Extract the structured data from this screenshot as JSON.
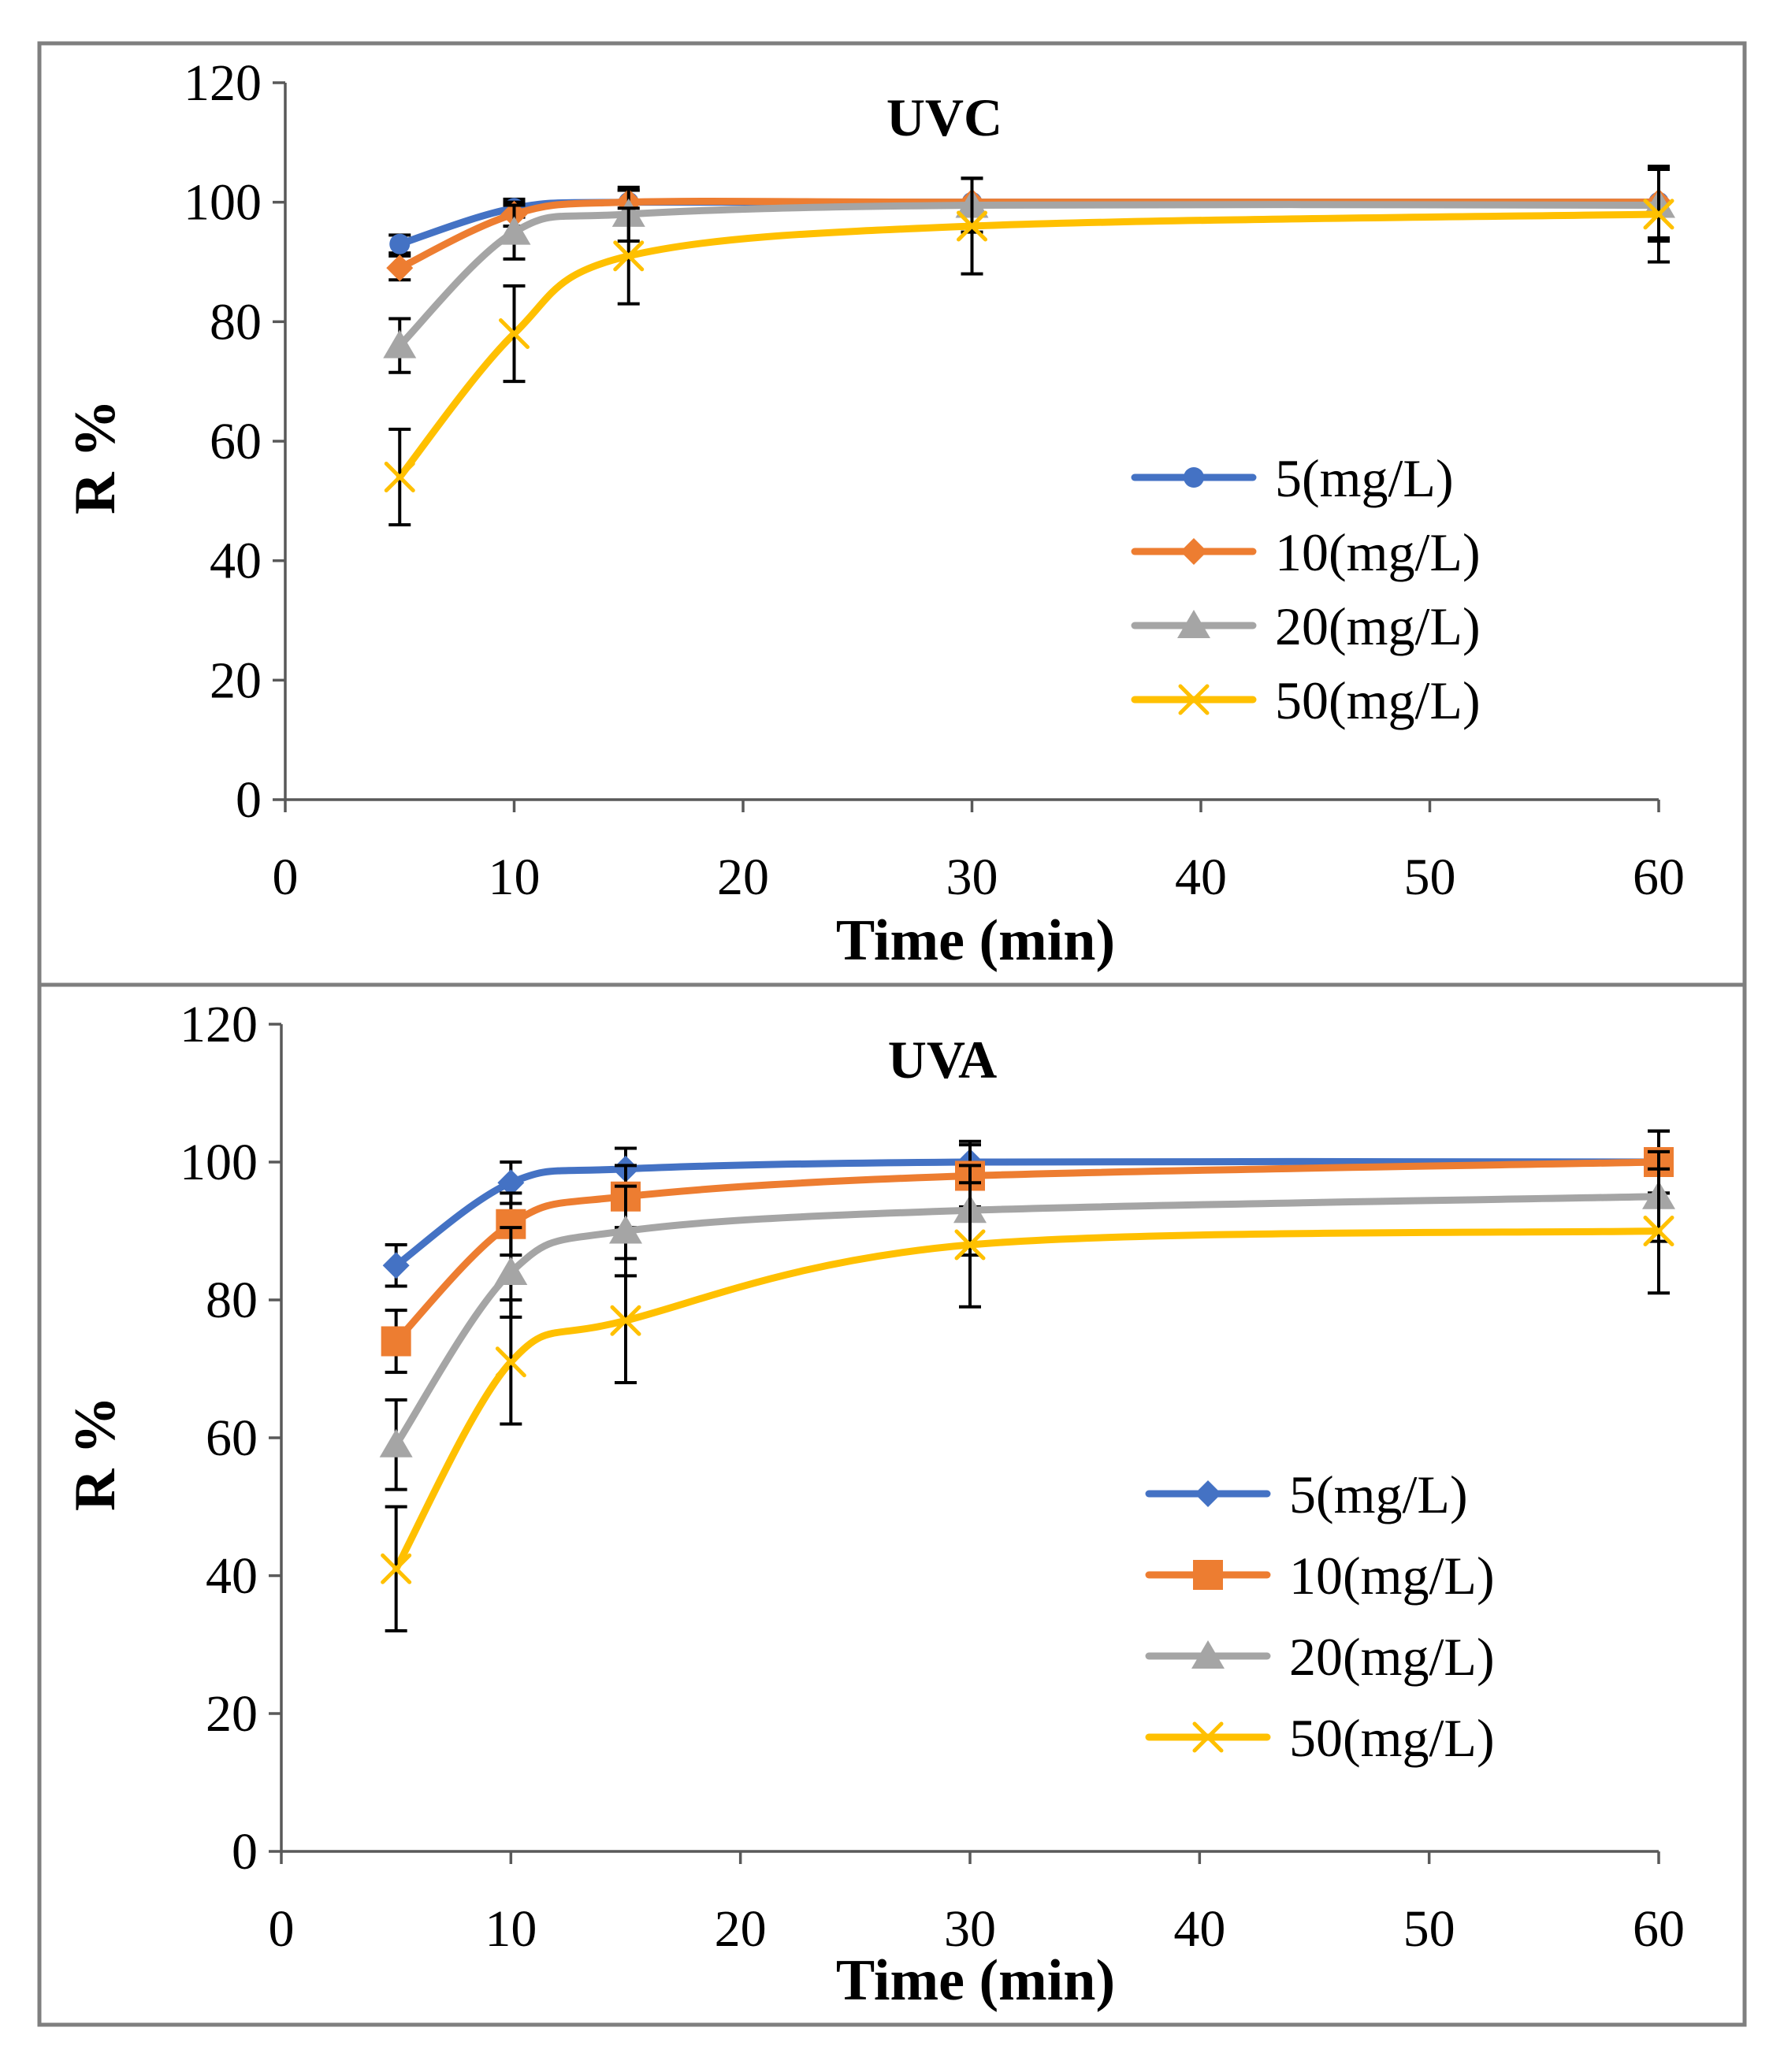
{
  "chart_data": [
    {
      "type": "line",
      "title": "UVC",
      "xlabel": "Time (min)",
      "ylabel": "R %",
      "xlim": [
        0,
        60
      ],
      "ylim": [
        0,
        120
      ],
      "xticks": [
        0,
        10,
        20,
        30,
        40,
        50,
        60
      ],
      "yticks": [
        0,
        20,
        40,
        60,
        80,
        100,
        120
      ],
      "grid": false,
      "legend_position": "right",
      "x": [
        5,
        10,
        15,
        30,
        60
      ],
      "series": [
        {
          "name": "5(mg/L)",
          "color": "#4472C4",
          "marker": "circle",
          "values": [
            93,
            99,
            100,
            100,
            100
          ],
          "errors": [
            1.5,
            1.5,
            2,
            4,
            6
          ]
        },
        {
          "name": "10(mg/L)",
          "color": "#ED7D31",
          "marker": "diamond",
          "values": [
            89,
            98,
            100,
            100,
            100
          ],
          "errors": [
            2,
            2,
            2,
            4,
            6
          ]
        },
        {
          "name": "20(mg/L)",
          "color": "#A5A5A5",
          "marker": "triangle",
          "values": [
            76,
            95,
            98,
            99.5,
            99.5
          ],
          "errors": [
            4.5,
            4.5,
            4.5,
            4.5,
            6
          ]
        },
        {
          "name": "50(mg/L)",
          "color": "#FFC000",
          "marker": "x",
          "values": [
            54,
            78,
            91,
            96,
            98
          ],
          "errors": [
            8,
            8,
            8,
            8,
            8
          ]
        }
      ]
    },
    {
      "type": "line",
      "title": "UVA",
      "xlabel": "Time (min)",
      "ylabel": "R %",
      "xlim": [
        0,
        60
      ],
      "ylim": [
        0,
        120
      ],
      "xticks": [
        0,
        10,
        20,
        30,
        40,
        50,
        60
      ],
      "yticks": [
        0,
        20,
        40,
        60,
        80,
        100,
        120
      ],
      "grid": false,
      "legend_position": "right",
      "x": [
        5,
        10,
        15,
        30,
        60
      ],
      "series": [
        {
          "name": "5(mg/L)",
          "color": "#4472C4",
          "marker": "diamond",
          "values": [
            85,
            97,
            99,
            100,
            100
          ],
          "errors": [
            3,
            3,
            3,
            3,
            4.5
          ]
        },
        {
          "name": "10(mg/L)",
          "color": "#ED7D31",
          "marker": "square",
          "values": [
            74,
            91,
            95,
            98,
            100
          ],
          "errors": [
            4.5,
            4.5,
            4.5,
            4.5,
            4.5
          ]
        },
        {
          "name": "20(mg/L)",
          "color": "#A5A5A5",
          "marker": "triangle",
          "values": [
            59,
            84,
            90,
            93,
            95
          ],
          "errors": [
            6.5,
            6.5,
            6.5,
            6.5,
            6.5
          ]
        },
        {
          "name": "50(mg/L)",
          "color": "#FFC000",
          "marker": "x",
          "values": [
            41,
            71,
            77,
            88,
            90
          ],
          "errors": [
            9,
            9,
            9,
            9,
            9
          ]
        }
      ]
    }
  ]
}
